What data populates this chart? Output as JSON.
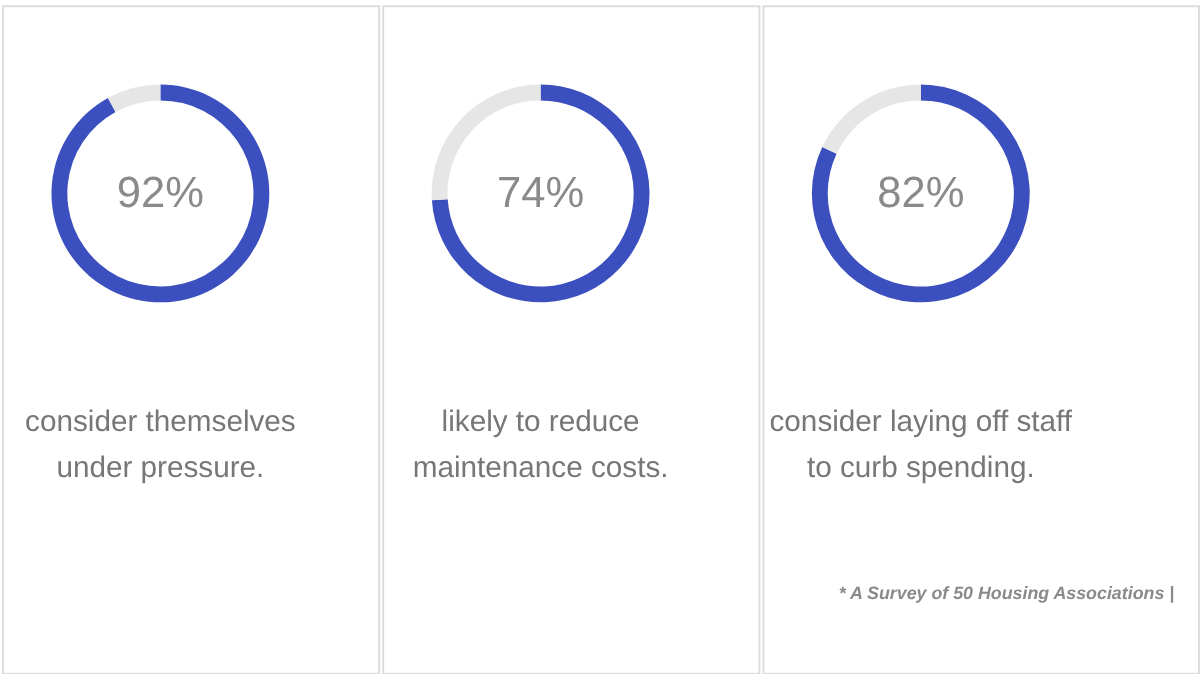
{
  "chart_data": [
    {
      "type": "donut",
      "title": "consider themselves\nunder pressure.",
      "categories": [
        null,
        null
      ],
      "values": [
        92,
        8
      ],
      "colors": [
        "#3c4fbe",
        "#e6e6e6"
      ],
      "annotations": [
        "92%"
      ]
    },
    {
      "type": "donut",
      "title": "likely to reduce\nmaintenance costs.",
      "categories": [
        null,
        null
      ],
      "values": [
        74,
        26
      ],
      "colors": [
        "#3c4fbe",
        "#e6e6e6"
      ],
      "annotations": [
        "74%"
      ]
    },
    {
      "type": "donut",
      "title": "consider laying off staff\nto curb spending.",
      "categories": [
        null,
        null
      ],
      "values": [
        82,
        18
      ],
      "colors": [
        "#3c4fbe",
        "#e6e6e6"
      ],
      "annotations": [
        "82%",
        "* A Survey of 50 Housing Associations |"
      ]
    }
  ]
}
